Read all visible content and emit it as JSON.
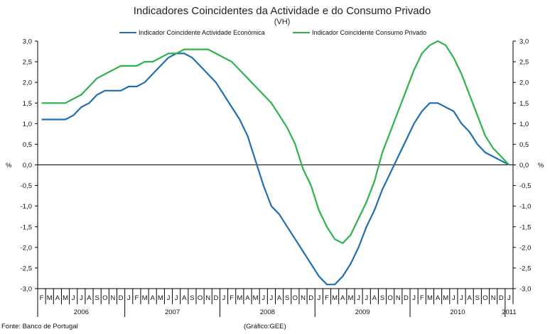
{
  "chart_data": {
    "type": "line",
    "title": "Indicadores Coincidentes da Actividade e do Consumo Privado",
    "subtitle": "(VH)",
    "ylabel_left": "%",
    "ylabel_right": "%",
    "ylim": [
      -3.0,
      3.0
    ],
    "yticks": [
      "3,0",
      "2,5",
      "2,0",
      "1,5",
      "1,0",
      "0,5",
      "0,0",
      "-0,5",
      "-1,0",
      "-1,5",
      "-2,0",
      "-2,5",
      "-3,0"
    ],
    "months": [
      "F",
      "M",
      "A",
      "M",
      "J",
      "J",
      "A",
      "S",
      "O",
      "N",
      "D",
      "J",
      "F",
      "M",
      "A",
      "M",
      "J",
      "J",
      "A",
      "S",
      "O",
      "N",
      "D",
      "J",
      "F",
      "M",
      "A",
      "M",
      "J",
      "J",
      "A",
      "S",
      "O",
      "N",
      "D",
      "J",
      "F",
      "M",
      "A",
      "M",
      "J",
      "J",
      "A",
      "S",
      "O",
      "N",
      "D",
      "J",
      "F",
      "M",
      "A",
      "M",
      "J",
      "J",
      "A",
      "S",
      "O",
      "N",
      "D",
      "J"
    ],
    "years": [
      {
        "label": "2006",
        "start": 0,
        "end": 10
      },
      {
        "label": "2007",
        "start": 11,
        "end": 22
      },
      {
        "label": "2008",
        "start": 23,
        "end": 34
      },
      {
        "label": "2009",
        "start": 35,
        "end": 46
      },
      {
        "label": "2010",
        "start": 47,
        "end": 58
      },
      {
        "label": "2011",
        "start": 59,
        "end": 59
      }
    ],
    "series": [
      {
        "name": "Indicador Coincidente Actividade Económica",
        "color": "#1f6fb2",
        "values": [
          1.1,
          1.1,
          1.1,
          1.1,
          1.2,
          1.4,
          1.5,
          1.7,
          1.8,
          1.8,
          1.8,
          1.9,
          1.9,
          2.0,
          2.2,
          2.4,
          2.6,
          2.7,
          2.7,
          2.6,
          2.4,
          2.2,
          2.0,
          1.7,
          1.4,
          1.1,
          0.7,
          0.1,
          -0.5,
          -1.0,
          -1.2,
          -1.5,
          -1.8,
          -2.1,
          -2.4,
          -2.7,
          -2.9,
          -2.9,
          -2.7,
          -2.4,
          -2.0,
          -1.5,
          -1.1,
          -0.6,
          -0.2,
          0.2,
          0.6,
          1.0,
          1.3,
          1.5,
          1.5,
          1.4,
          1.3,
          1.0,
          0.8,
          0.5,
          0.3,
          0.2,
          0.1,
          0.0
        ]
      },
      {
        "name": "Indicador Coincidente Consumo Privado",
        "color": "#2db34a",
        "values": [
          1.5,
          1.5,
          1.5,
          1.5,
          1.6,
          1.7,
          1.9,
          2.1,
          2.2,
          2.3,
          2.4,
          2.4,
          2.4,
          2.5,
          2.5,
          2.6,
          2.7,
          2.7,
          2.8,
          2.8,
          2.8,
          2.8,
          2.7,
          2.6,
          2.5,
          2.3,
          2.1,
          1.9,
          1.7,
          1.5,
          1.2,
          0.9,
          0.5,
          -0.1,
          -0.5,
          -1.1,
          -1.5,
          -1.8,
          -1.9,
          -1.7,
          -1.3,
          -0.9,
          -0.4,
          0.3,
          0.8,
          1.3,
          1.8,
          2.3,
          2.7,
          2.9,
          3.0,
          2.9,
          2.6,
          2.2,
          1.7,
          1.2,
          0.7,
          0.4,
          0.2,
          0.0
        ]
      }
    ]
  },
  "footer": {
    "source": "Fonte: Banco de Portugal",
    "credit": "(Gráfico:GEE)"
  }
}
